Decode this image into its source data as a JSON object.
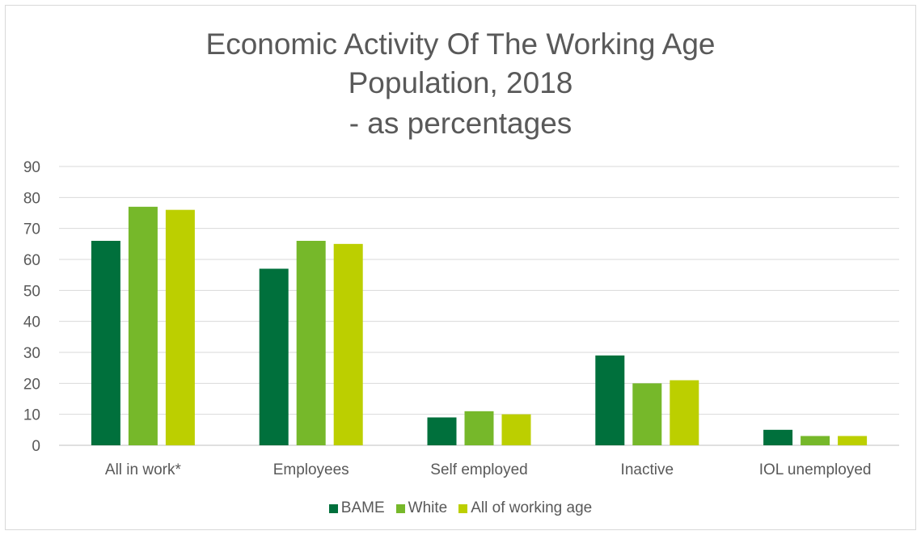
{
  "chart_data": {
    "type": "bar",
    "title_lines": [
      "Economic Activity Of The Working Age",
      "Population, 2018",
      "- as percentages"
    ],
    "categories": [
      "All in work*",
      "Employees",
      "Self employed",
      "Inactive",
      "IOL unemployed"
    ],
    "series": [
      {
        "name": "BAME",
        "color": "#00703c",
        "values": [
          66,
          57,
          9,
          29,
          5
        ]
      },
      {
        "name": "White",
        "color": "#76b82a",
        "values": [
          77,
          66,
          11,
          20,
          3
        ]
      },
      {
        "name": "All of working age",
        "color": "#bccf00",
        "values": [
          76,
          65,
          10,
          21,
          3
        ]
      }
    ],
    "ylim": [
      0,
      90
    ],
    "yticks": [
      0,
      10,
      20,
      30,
      40,
      50,
      60,
      70,
      80,
      90
    ],
    "xlabel": "",
    "ylabel": "",
    "grid": true,
    "legend_position": "bottom"
  }
}
